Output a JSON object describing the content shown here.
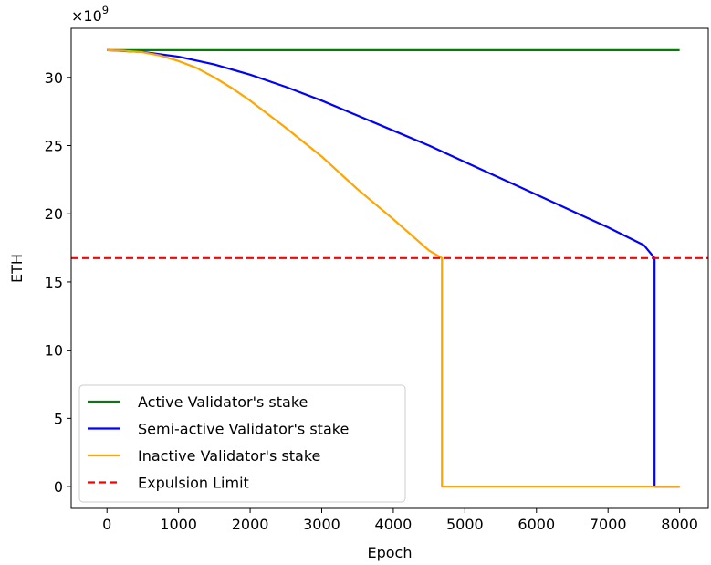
{
  "chart_data": {
    "type": "line",
    "xlabel": "Epoch",
    "ylabel": "ETH",
    "y_scale_label": "×10",
    "y_scale_exp": "9",
    "xlim": [
      -500,
      8400
    ],
    "ylim": [
      -1.6,
      33.6
    ],
    "x_ticks": [
      0,
      1000,
      2000,
      3000,
      4000,
      5000,
      6000,
      7000,
      8000
    ],
    "x_tick_labels": [
      "0",
      "1000",
      "2000",
      "3000",
      "4000",
      "5000",
      "6000",
      "7000",
      "8000"
    ],
    "y_ticks": [
      0,
      5,
      10,
      15,
      20,
      25,
      30
    ],
    "y_tick_labels": [
      "0",
      "5",
      "10",
      "15",
      "20",
      "25",
      "30"
    ],
    "grid": false,
    "legend_position": "lower-left",
    "series": [
      {
        "name": "Active Validator's stake",
        "color": "#008000",
        "style": "solid",
        "x": [
          0,
          8000
        ],
        "y": [
          32,
          32
        ]
      },
      {
        "name": "Semi-active Validator's stake",
        "color": "#0000ff",
        "style": "solid",
        "x": [
          0,
          500,
          1000,
          1500,
          2000,
          2500,
          3000,
          3500,
          4000,
          4500,
          5000,
          5500,
          6000,
          6500,
          7000,
          7500,
          7650,
          7650,
          8000
        ],
        "y": [
          32,
          31.87,
          31.52,
          30.95,
          30.2,
          29.3,
          28.3,
          27.2,
          26.1,
          25.0,
          23.8,
          22.6,
          21.4,
          20.2,
          19.0,
          17.7,
          16.75,
          0,
          0
        ]
      },
      {
        "name": "Inactive Validator's stake",
        "color": "#ffa500",
        "style": "solid",
        "x": [
          0,
          250,
          500,
          750,
          1000,
          1250,
          1500,
          1750,
          2000,
          2500,
          3000,
          3500,
          4000,
          4500,
          4680,
          4680,
          8000
        ],
        "y": [
          32,
          31.95,
          31.85,
          31.6,
          31.2,
          30.7,
          30.0,
          29.2,
          28.3,
          26.3,
          24.2,
          21.8,
          19.6,
          17.3,
          16.75,
          0,
          0
        ]
      },
      {
        "name": "Expulsion Limit",
        "color": "#ff0000",
        "style": "dashed",
        "x": [
          -500,
          8400
        ],
        "y": [
          16.75,
          16.75
        ]
      }
    ]
  }
}
